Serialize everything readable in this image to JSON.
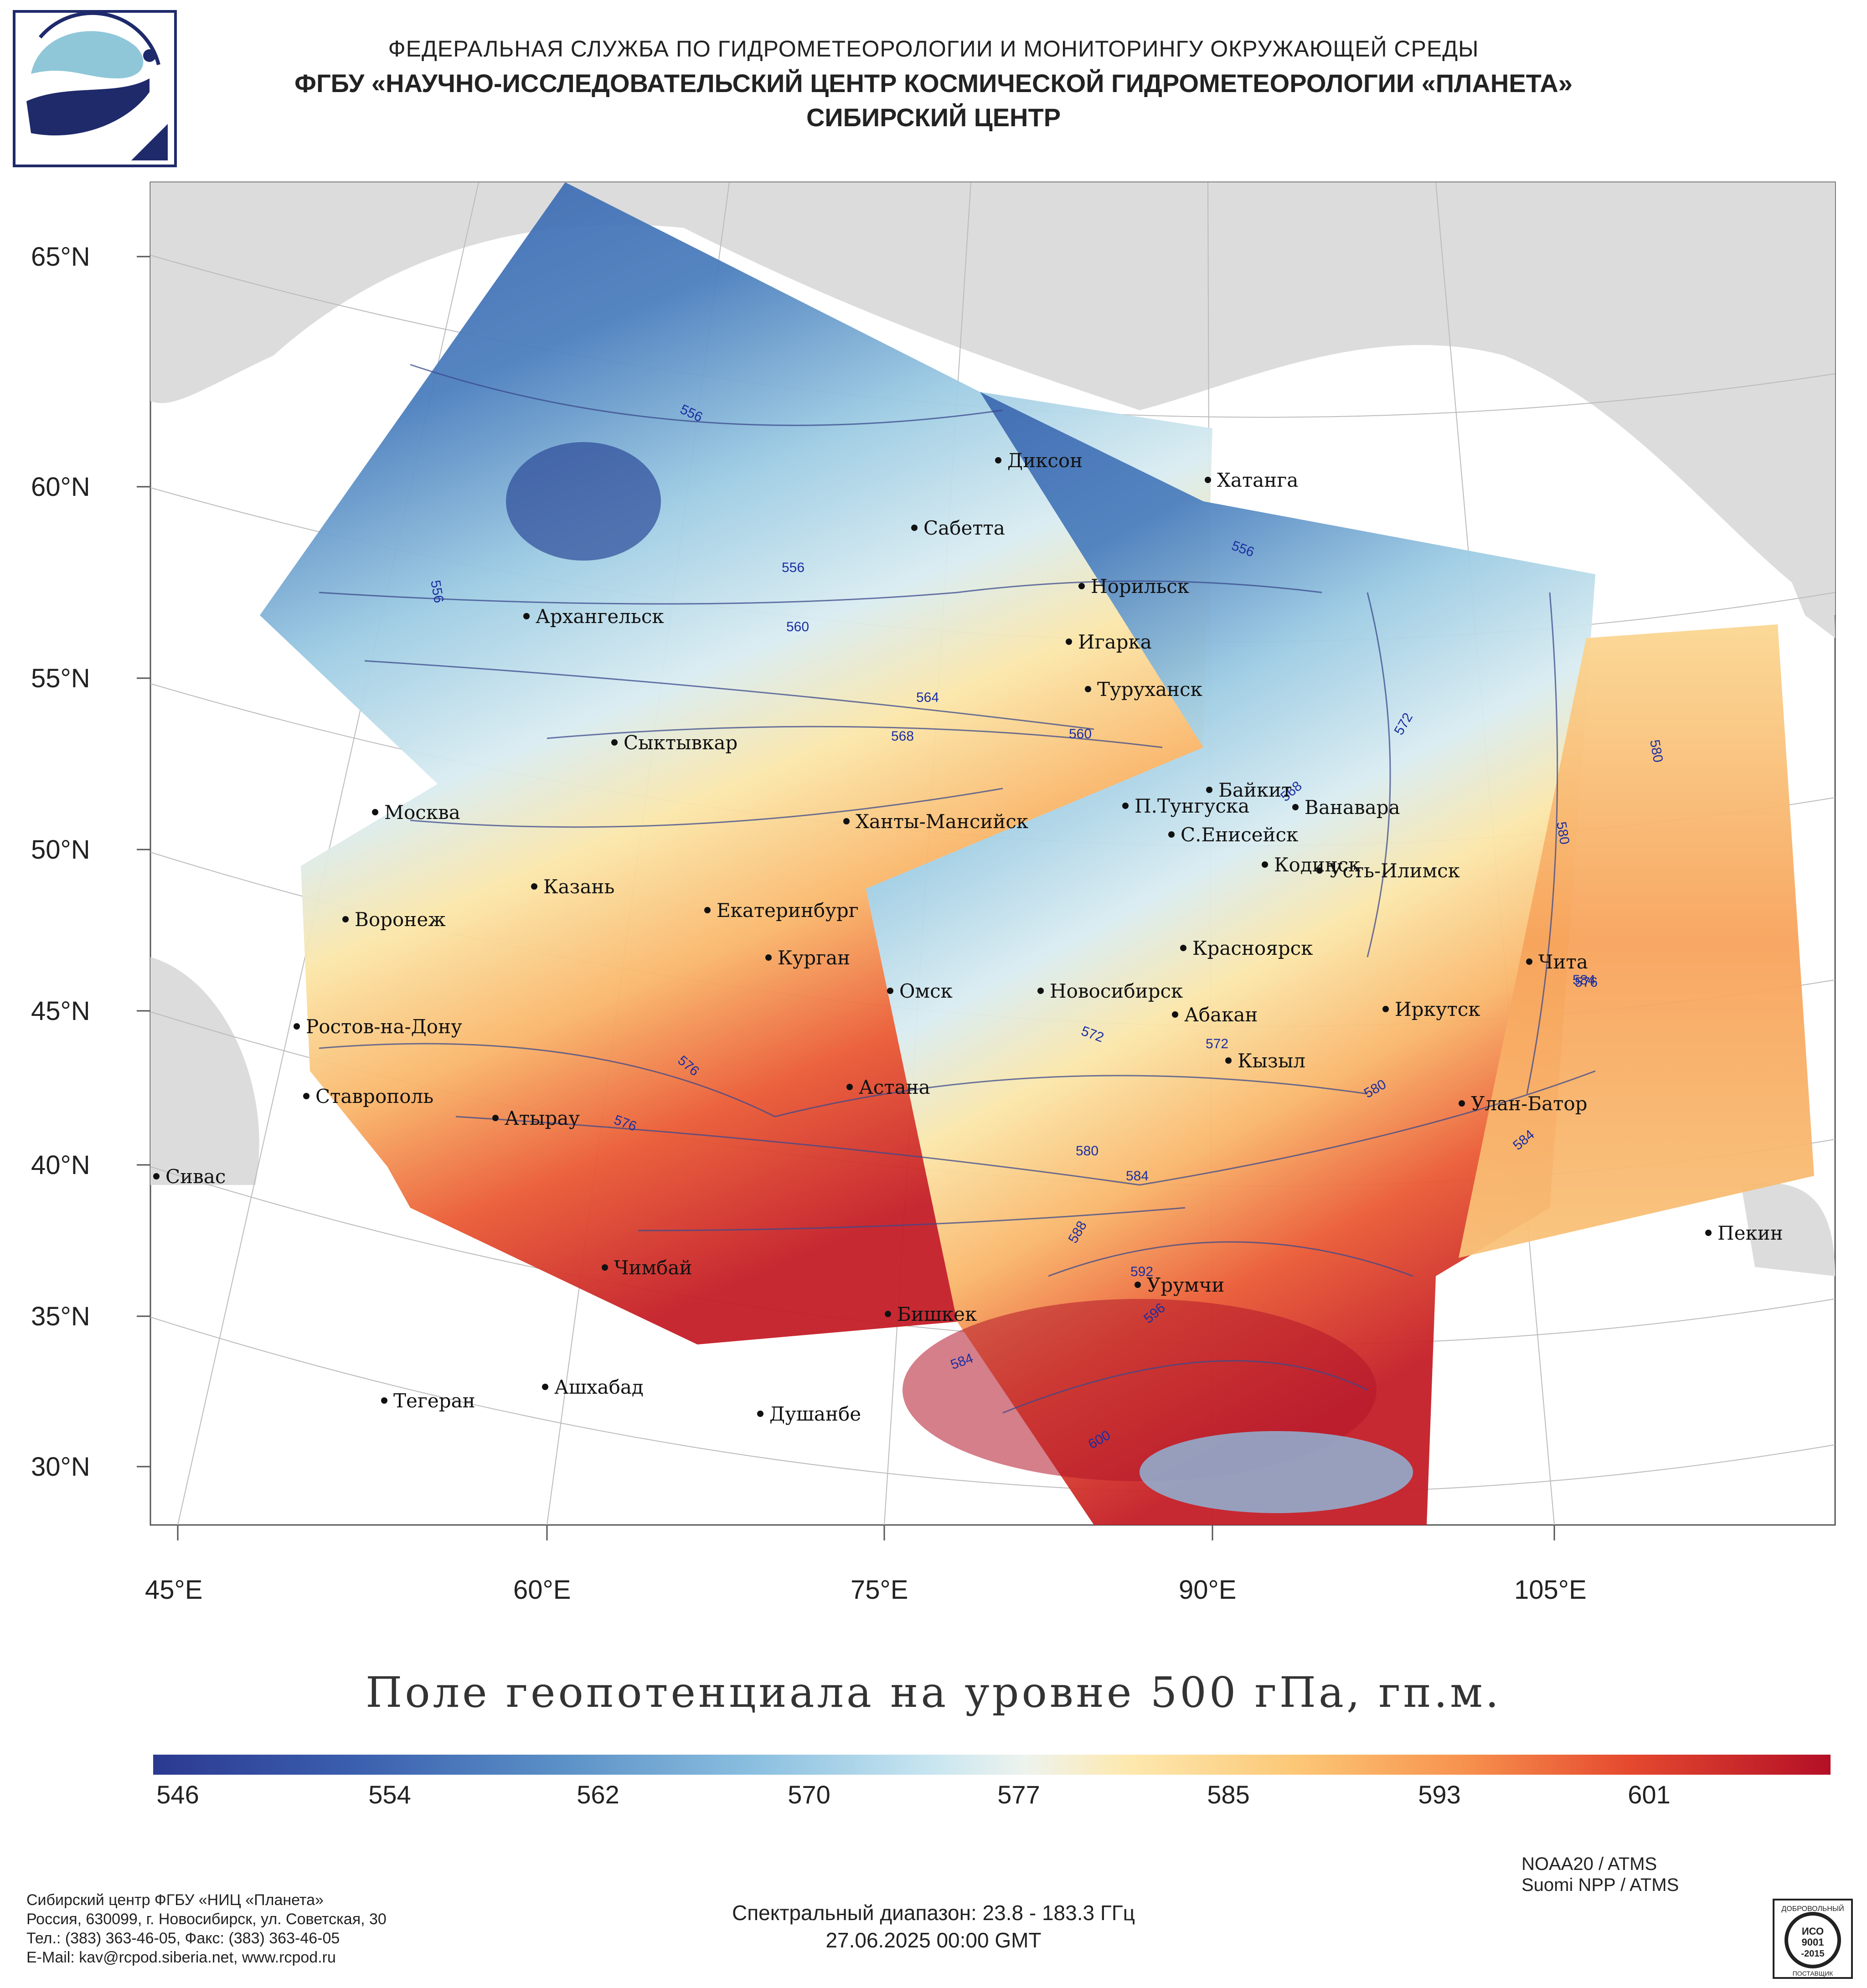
{
  "header": {
    "line1": "ФЕДЕРАЛЬНАЯ СЛУЖБА ПО ГИДРОМЕТЕОРОЛОГИИ И МОНИТОРИНГУ ОКРУЖАЮЩЕЙ СРЕДЫ",
    "line2": "ФГБУ «НАУЧНО-ИССЛЕДОВАТЕЛЬСКИЙ ЦЕНТР КОСМИЧЕСКОЙ ГИДРОМЕТЕОРОЛОГИИ «ПЛАНЕТА»",
    "line3": "СИБИРСКИЙ ЦЕНТР"
  },
  "logo_icon": "planeta-logo-icon",
  "map": {
    "lat_labels": [
      "65°N",
      "60°N",
      "55°N",
      "50°N",
      "45°N",
      "40°N",
      "35°N",
      "30°N"
    ],
    "lon_labels": [
      "45°E",
      "60°E",
      "75°E",
      "90°E",
      "105°E"
    ],
    "cities": [
      "Диксон",
      "Хатанга",
      "Сабетта",
      "Норильск",
      "Архангельск",
      "Игарка",
      "Туруханск",
      "Сыктывкар",
      "Байкит",
      "Москва",
      "П.Тунгуска",
      "Ванавара",
      "Ханты-Мансийск",
      "С.Енисейск",
      "Кодинск",
      "Усть-Илимск",
      "Казань",
      "Воронеж",
      "Екатеринбург",
      "Красноярск",
      "Курган",
      "Чита",
      "Омск",
      "Новосибирск",
      "Ростов-на-Дону",
      "Иркутск",
      "Абакан",
      "Кызыл",
      "Астана",
      "Ставрополь",
      "Улан-Батор",
      "Атырау",
      "Сивас",
      "Пекин",
      "Чимбай",
      "Урумчи",
      "Бишкек",
      "Ашхабад",
      "Тегеран",
      "Душанбе"
    ],
    "isolines": [
      "556",
      "556",
      "556",
      "556",
      "560",
      "564",
      "568",
      "560",
      "572",
      "568",
      "580",
      "580",
      "584",
      "576",
      "572",
      "572",
      "576",
      "576",
      "580",
      "584",
      "588",
      "592",
      "596",
      "584",
      "584",
      "600",
      "580"
    ]
  },
  "map_title": "Поле геопотенциала на уровне 500 гПа, гп.м.",
  "colorbar": {
    "ticks": [
      "546",
      "554",
      "562",
      "570",
      "577",
      "585",
      "593",
      "601"
    ],
    "low_color": "#2b3990",
    "high_color": "#b40f26"
  },
  "footer": {
    "org": [
      "Сибирский центр ФГБУ «НИЦ «Планета»",
      "Россия, 630099, г. Новосибирск, ул. Советская, 30",
      "Тел.: (383) 363-46-05, Факс: (383) 363-46-05",
      "E-Mail: kav@rcpod.siberia.net, www.rcpod.ru"
    ],
    "satellites": [
      "NOAA20 / ATMS",
      "Suomi NPP / ATMS"
    ],
    "spectral": "Спектральный диапазон: 23.8 - 183.3 ГГц",
    "datetime": "27.06.2025 00:00 GMT",
    "iso": {
      "top": "ДОБРОВОЛЬНЫЙ",
      "mid1": "ИСО",
      "mid2": "9001",
      "mid3": "-2015",
      "bottom": "ПОСТАВЩИК"
    }
  }
}
